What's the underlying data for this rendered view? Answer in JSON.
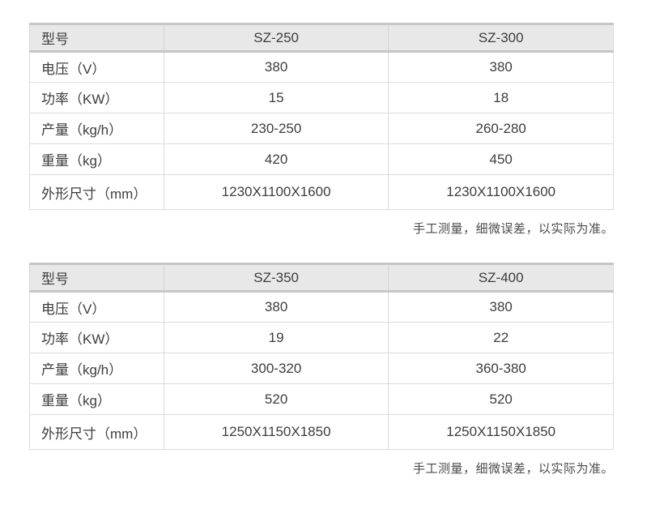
{
  "colors": {
    "header_bg": "#e8e8e8",
    "header_border": "#c6c6c6",
    "cell_border": "#dcdcdc",
    "text": "#3d3d3d",
    "note_text": "#4a4a4a",
    "page_bg": "#ffffff"
  },
  "tables": [
    {
      "header": [
        "型号",
        "SZ-250",
        "SZ-300"
      ],
      "rows": [
        [
          "电压（V）",
          "380",
          "380"
        ],
        [
          "功率（KW）",
          "15",
          "18"
        ],
        [
          "产量（kg/h）",
          "230-250",
          "260-280"
        ],
        [
          "重量（kg）",
          "420",
          "450"
        ],
        [
          "外形尺寸（mm）",
          "1230X1100X1600",
          "1230X1100X1600"
        ]
      ],
      "note": "手工测量，细微误差，以实际为准。"
    },
    {
      "header": [
        "型号",
        "SZ-350",
        "SZ-400"
      ],
      "rows": [
        [
          "电压（V）",
          "380",
          "380"
        ],
        [
          "功率（KW）",
          "19",
          "22"
        ],
        [
          "产量（kg/h）",
          "300-320",
          "360-380"
        ],
        [
          "重量（kg）",
          "520",
          "520"
        ],
        [
          "外形尺寸（mm）",
          "1250X1150X1850",
          "1250X1150X1850"
        ]
      ],
      "note": "手工测量，细微误差，以实际为准。"
    }
  ]
}
